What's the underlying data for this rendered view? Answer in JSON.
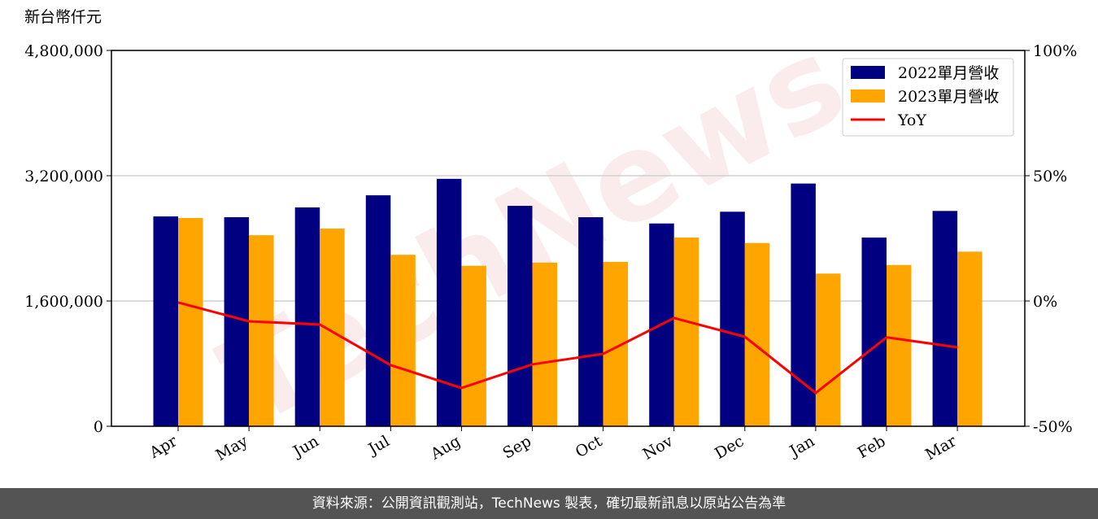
{
  "chart_data": {
    "type": "bar-line",
    "y_label": "新台幣仟元",
    "watermark": "TechNews",
    "categories": [
      "Apr",
      "May",
      "Jun",
      "Jul",
      "Aug",
      "Sep",
      "Oct",
      "Nov",
      "Dec",
      "Jan",
      "Feb",
      "Mar"
    ],
    "series": [
      {
        "name": "2022單月營收",
        "type": "bar",
        "color": "#000080",
        "values": [
          2680000,
          2670000,
          2795000,
          2950000,
          3160000,
          2815000,
          2670000,
          2590000,
          2740000,
          3100000,
          2410000,
          2750000
        ]
      },
      {
        "name": "2023單月營收",
        "type": "bar",
        "color": "#ffa500",
        "values": [
          2660000,
          2440000,
          2525000,
          2190000,
          2050000,
          2090000,
          2100000,
          2410000,
          2340000,
          1950000,
          2060000,
          2230000
        ]
      },
      {
        "name": "YoY",
        "type": "line",
        "axis": "y2",
        "color": "#ff0000",
        "values": [
          -0.6,
          -8.1,
          -9.4,
          -25.6,
          -34.7,
          -25.3,
          -21.1,
          -6.8,
          -14.3,
          -36.7,
          -14.5,
          -18.5
        ]
      }
    ],
    "ylim": [
      0,
      4800000
    ],
    "yticks": [
      0,
      {
        "value": 1600000,
        "label": "1,600,000"
      },
      {
        "value": 3200000,
        "label": "3,200,000"
      },
      {
        "value": 4800000,
        "label": "4,800,000"
      }
    ],
    "y2lim": [
      -50,
      100
    ],
    "y2ticks": [
      {
        "value": -50,
        "label": "-50%"
      },
      {
        "value": 0,
        "label": "0%"
      },
      {
        "value": 50,
        "label": "50%"
      },
      {
        "value": 100,
        "label": "100%"
      }
    ],
    "grid": true,
    "legend": "upper right",
    "footer": "資料來源：公開資訊觀測站，TechNews 製表，確切最新訊息以原站公告為準"
  }
}
